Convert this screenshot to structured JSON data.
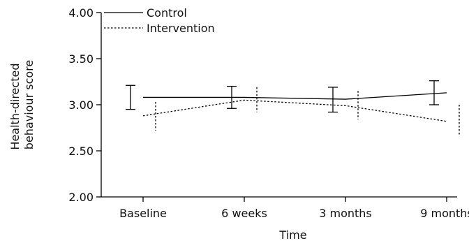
{
  "chart_data": {
    "type": "line",
    "xlabel": "Time",
    "ylabel_lines": [
      "Health-directed",
      "behaviour score"
    ],
    "categories": [
      "Baseline",
      "6 weeks",
      "3 months",
      "9 months"
    ],
    "ylim": [
      2.0,
      4.0
    ],
    "yticks": [
      "2.00",
      "2.50",
      "3.00",
      "3.50",
      "4.00"
    ],
    "grid": false,
    "legend_position": "top-left",
    "series": [
      {
        "name": "Control",
        "style": "solid",
        "color": "#000000",
        "values": [
          3.08,
          3.08,
          3.06,
          3.13
        ],
        "ci_low": [
          2.95,
          2.96,
          2.92,
          3.0
        ],
        "ci_high": [
          3.21,
          3.2,
          3.19,
          3.26
        ]
      },
      {
        "name": "Intervention",
        "style": "dotted",
        "color": "#000000",
        "values": [
          2.88,
          3.05,
          2.99,
          2.82
        ],
        "ci_low": [
          2.72,
          2.92,
          2.84,
          2.66
        ],
        "ci_high": [
          3.03,
          3.19,
          3.15,
          3.0
        ]
      }
    ]
  }
}
